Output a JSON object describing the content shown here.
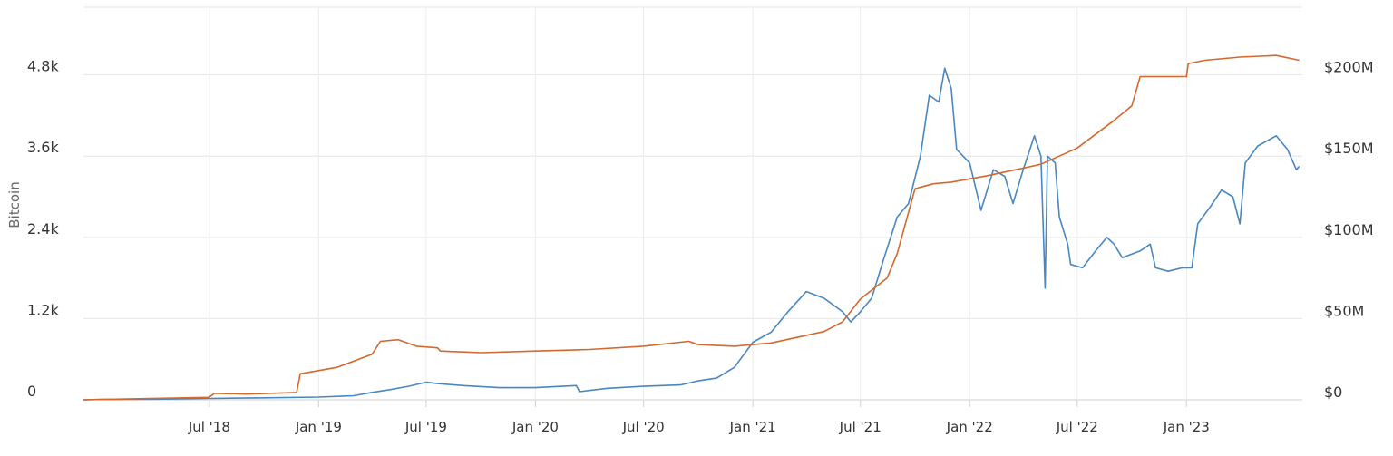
{
  "chart_data": {
    "type": "line",
    "title": "",
    "ylabel": "Bitcoin",
    "y2label": "",
    "ylim": [
      0,
      5800
    ],
    "y2lim": [
      0,
      241.67
    ],
    "grid": true,
    "y_ticks": [
      {
        "value": 0,
        "label": "0"
      },
      {
        "value": 1200,
        "label": "1.2k"
      },
      {
        "value": 2400,
        "label": "2.4k"
      },
      {
        "value": 3600,
        "label": "3.6k"
      },
      {
        "value": 4800,
        "label": "4.8k"
      }
    ],
    "y2_ticks": [
      {
        "value": 0,
        "label": "$0"
      },
      {
        "value": 50,
        "label": "$50M"
      },
      {
        "value": 100,
        "label": "$100M"
      },
      {
        "value": 150,
        "label": "$150M"
      },
      {
        "value": 200,
        "label": "$200M"
      }
    ],
    "x_range": [
      "2017-12-01",
      "2023-07-15"
    ],
    "x_ticks": [
      {
        "date": "2018-07-01",
        "label": "Jul '18"
      },
      {
        "date": "2019-01-01",
        "label": "Jan '19"
      },
      {
        "date": "2019-07-01",
        "label": "Jul '19"
      },
      {
        "date": "2020-01-01",
        "label": "Jan '20"
      },
      {
        "date": "2020-07-01",
        "label": "Jul '20"
      },
      {
        "date": "2021-01-01",
        "label": "Jan '21"
      },
      {
        "date": "2021-07-01",
        "label": "Jul '21"
      },
      {
        "date": "2022-01-01",
        "label": "Jan '22"
      },
      {
        "date": "2022-07-01",
        "label": "Jul '22"
      },
      {
        "date": "2023-01-01",
        "label": "Jan '23"
      }
    ],
    "series": [
      {
        "axis": "left",
        "color": "#4a86c0",
        "points": [
          [
            "2017-12-01",
            0
          ],
          [
            "2018-01-01",
            5
          ],
          [
            "2018-04-01",
            10
          ],
          [
            "2018-07-01",
            20
          ],
          [
            "2018-10-01",
            30
          ],
          [
            "2019-01-01",
            40
          ],
          [
            "2019-03-01",
            60
          ],
          [
            "2019-04-01",
            110
          ],
          [
            "2019-05-01",
            150
          ],
          [
            "2019-06-01",
            200
          ],
          [
            "2019-07-01",
            260
          ],
          [
            "2019-07-20",
            240
          ],
          [
            "2019-09-01",
            210
          ],
          [
            "2019-11-01",
            180
          ],
          [
            "2020-01-01",
            180
          ],
          [
            "2020-02-15",
            200
          ],
          [
            "2020-03-10",
            210
          ],
          [
            "2020-03-15",
            120
          ],
          [
            "2020-05-01",
            170
          ],
          [
            "2020-07-01",
            200
          ],
          [
            "2020-09-01",
            220
          ],
          [
            "2020-10-01",
            280
          ],
          [
            "2020-11-01",
            320
          ],
          [
            "2020-12-01",
            480
          ],
          [
            "2021-01-01",
            850
          ],
          [
            "2021-02-01",
            1000
          ],
          [
            "2021-03-01",
            1300
          ],
          [
            "2021-04-01",
            1600
          ],
          [
            "2021-05-01",
            1500
          ],
          [
            "2021-06-01",
            1300
          ],
          [
            "2021-06-15",
            1150
          ],
          [
            "2021-07-01",
            1300
          ],
          [
            "2021-07-20",
            1500
          ],
          [
            "2021-08-10",
            2100
          ],
          [
            "2021-09-01",
            2700
          ],
          [
            "2021-09-20",
            2900
          ],
          [
            "2021-10-10",
            3600
          ],
          [
            "2021-10-25",
            4500
          ],
          [
            "2021-11-10",
            4400
          ],
          [
            "2021-11-20",
            4900
          ],
          [
            "2021-12-01",
            4600
          ],
          [
            "2021-12-10",
            3700
          ],
          [
            "2022-01-01",
            3500
          ],
          [
            "2022-01-20",
            2800
          ],
          [
            "2022-02-10",
            3400
          ],
          [
            "2022-03-01",
            3300
          ],
          [
            "2022-03-15",
            2900
          ],
          [
            "2022-04-01",
            3400
          ],
          [
            "2022-04-20",
            3900
          ],
          [
            "2022-05-01",
            3600
          ],
          [
            "2022-05-08",
            1650
          ],
          [
            "2022-05-12",
            3600
          ],
          [
            "2022-05-25",
            3500
          ],
          [
            "2022-06-01",
            2700
          ],
          [
            "2022-06-15",
            2300
          ],
          [
            "2022-06-20",
            2000
          ],
          [
            "2022-07-10",
            1950
          ],
          [
            "2022-08-01",
            2200
          ],
          [
            "2022-08-20",
            2400
          ],
          [
            "2022-09-01",
            2300
          ],
          [
            "2022-09-15",
            2100
          ],
          [
            "2022-10-15",
            2200
          ],
          [
            "2022-11-01",
            2300
          ],
          [
            "2022-11-10",
            1950
          ],
          [
            "2022-12-01",
            1900
          ],
          [
            "2022-12-25",
            1950
          ],
          [
            "2023-01-10",
            1950
          ],
          [
            "2023-01-20",
            2600
          ],
          [
            "2023-02-10",
            2850
          ],
          [
            "2023-03-01",
            3100
          ],
          [
            "2023-03-20",
            3000
          ],
          [
            "2023-04-01",
            2600
          ],
          [
            "2023-04-10",
            3500
          ],
          [
            "2023-05-01",
            3750
          ],
          [
            "2023-06-01",
            3900
          ],
          [
            "2023-06-20",
            3700
          ],
          [
            "2023-07-05",
            3400
          ],
          [
            "2023-07-10",
            3450
          ]
        ]
      },
      {
        "axis": "right",
        "color": "#d2692e",
        "points": [
          [
            "2017-12-01",
            0
          ],
          [
            "2018-06-30",
            1.5
          ],
          [
            "2018-07-10",
            4
          ],
          [
            "2018-09-01",
            3.5
          ],
          [
            "2018-11-25",
            4.5
          ],
          [
            "2018-12-01",
            16
          ],
          [
            "2019-02-01",
            20
          ],
          [
            "2019-04-01",
            28
          ],
          [
            "2019-04-15",
            36
          ],
          [
            "2019-05-15",
            37
          ],
          [
            "2019-06-15",
            33
          ],
          [
            "2019-07-20",
            32
          ],
          [
            "2019-07-25",
            30
          ],
          [
            "2019-10-01",
            29
          ],
          [
            "2020-01-01",
            30
          ],
          [
            "2020-04-01",
            31
          ],
          [
            "2020-07-01",
            33
          ],
          [
            "2020-09-15",
            36
          ],
          [
            "2020-10-01",
            34
          ],
          [
            "2020-12-01",
            33
          ],
          [
            "2021-02-01",
            35
          ],
          [
            "2021-05-01",
            42
          ],
          [
            "2021-06-01",
            48
          ],
          [
            "2021-07-01",
            62
          ],
          [
            "2021-08-15",
            75
          ],
          [
            "2021-09-01",
            90
          ],
          [
            "2021-10-01",
            130
          ],
          [
            "2021-11-01",
            133
          ],
          [
            "2021-12-01",
            134
          ],
          [
            "2022-02-01",
            138
          ],
          [
            "2022-05-01",
            145
          ],
          [
            "2022-07-01",
            155
          ],
          [
            "2022-09-01",
            172
          ],
          [
            "2022-10-01",
            181
          ],
          [
            "2022-10-15",
            199
          ],
          [
            "2023-01-01",
            199
          ],
          [
            "2023-01-04",
            207
          ],
          [
            "2023-02-01",
            209
          ],
          [
            "2023-04-01",
            211
          ],
          [
            "2023-06-01",
            212
          ],
          [
            "2023-07-10",
            209
          ]
        ]
      }
    ]
  }
}
